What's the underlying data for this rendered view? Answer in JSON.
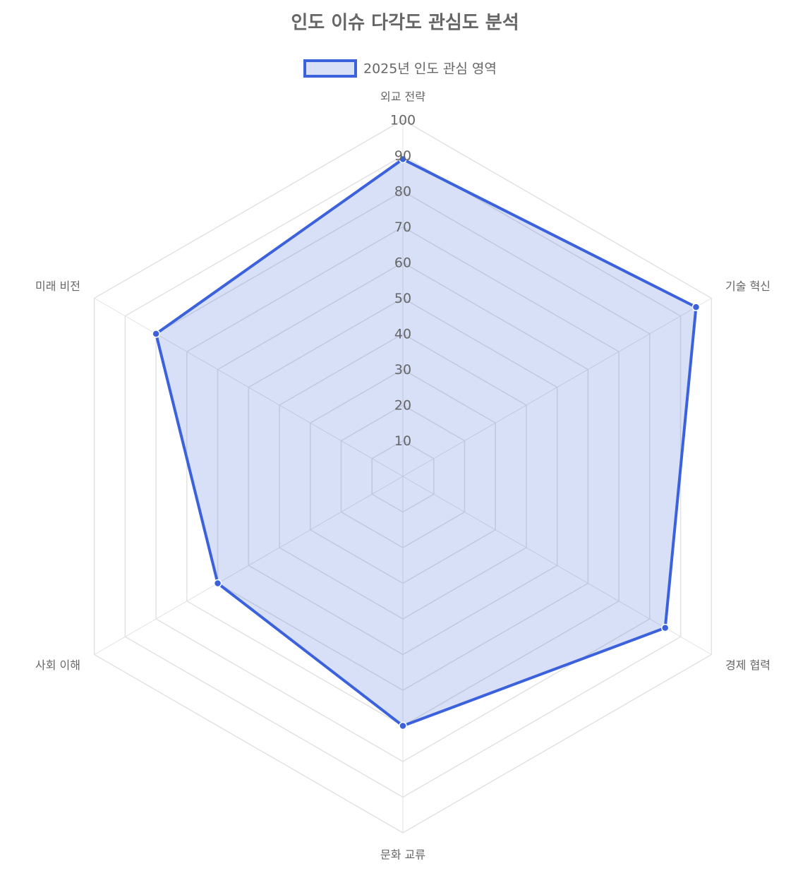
{
  "chart_data": {
    "type": "radar",
    "title": "인도 이슈 다각도 관심도 분석",
    "categories": [
      "외교 전략",
      "기술 혁신",
      "경제 협력",
      "문화 교류",
      "사회 이해",
      "미래 비전"
    ],
    "series": [
      {
        "name": "2025년 인도 관심 영역",
        "color": "#3b62dc",
        "values": [
          89,
          95,
          85,
          70,
          60,
          80
        ]
      }
    ],
    "rlim": [
      0,
      100
    ],
    "rticks": [
      10,
      20,
      30,
      40,
      50,
      60,
      70,
      80,
      90,
      100
    ],
    "grid": true,
    "legend": "top"
  }
}
